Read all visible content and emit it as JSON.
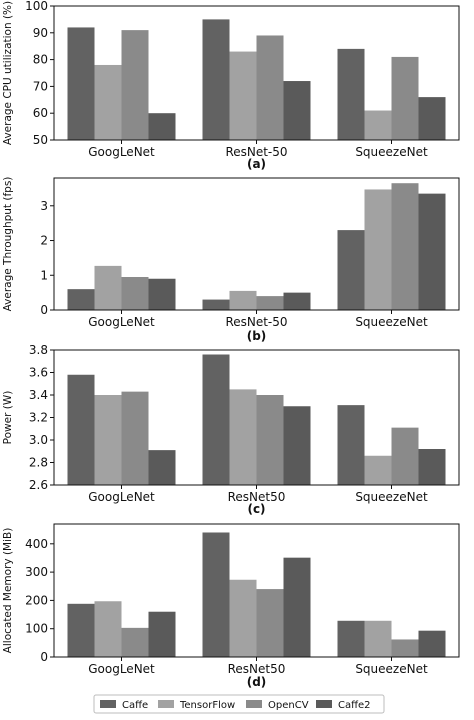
{
  "series_names": [
    "Caffe",
    "TensorFlow",
    "OpenCV",
    "Caffe2"
  ],
  "colors": {
    "Caffe": "#626262",
    "TensorFlow": "#a2a2a2",
    "OpenCV": "#8a8a8a",
    "Caffe2": "#5a5a5a"
  },
  "chart_data": [
    {
      "type": "bar",
      "caption": "(a)",
      "ylabel": "Average CPU utilization (%)",
      "categories": [
        "GoogLeNet",
        "ResNet-50",
        "SqueezeNet"
      ],
      "ylim": [
        50,
        100
      ],
      "yticks": [
        50,
        60,
        70,
        80,
        90,
        100
      ],
      "tick_format": "0",
      "series": [
        {
          "name": "Caffe",
          "values": [
            92,
            95,
            84
          ]
        },
        {
          "name": "TensorFlow",
          "values": [
            78,
            83,
            61
          ]
        },
        {
          "name": "OpenCV",
          "values": [
            91,
            89,
            81
          ]
        },
        {
          "name": "Caffe2",
          "values": [
            60,
            72,
            66
          ]
        }
      ]
    },
    {
      "type": "bar",
      "caption": "(b)",
      "ylabel": "Average Throughput (fps)",
      "categories": [
        "GoogLeNet",
        "ResNet-50",
        "SqueezeNet"
      ],
      "ylim": [
        0,
        3.8
      ],
      "yticks": [
        0,
        1,
        2,
        3
      ],
      "tick_format": "0",
      "series": [
        {
          "name": "Caffe",
          "values": [
            0.6,
            0.3,
            2.3
          ]
        },
        {
          "name": "TensorFlow",
          "values": [
            1.27,
            0.55,
            3.47
          ]
        },
        {
          "name": "OpenCV",
          "values": [
            0.95,
            0.4,
            3.65
          ]
        },
        {
          "name": "Caffe2",
          "values": [
            0.9,
            0.5,
            3.35
          ]
        }
      ]
    },
    {
      "type": "bar",
      "caption": "(c)",
      "ylabel": "Power (W)",
      "categories": [
        "GoogLeNet",
        "ResNet50",
        "SqueezeNet"
      ],
      "ylim": [
        2.6,
        3.8
      ],
      "yticks": [
        2.6,
        2.8,
        3.0,
        3.2,
        3.4,
        3.6,
        3.8
      ],
      "tick_format": "0.0",
      "series": [
        {
          "name": "Caffe",
          "values": [
            3.58,
            3.76,
            3.31
          ]
        },
        {
          "name": "TensorFlow",
          "values": [
            3.4,
            3.45,
            2.86
          ]
        },
        {
          "name": "OpenCV",
          "values": [
            3.43,
            3.4,
            3.11
          ]
        },
        {
          "name": "Caffe2",
          "values": [
            2.91,
            3.3,
            2.92
          ]
        }
      ]
    },
    {
      "type": "bar",
      "caption": "(d)",
      "ylabel": "Allocated Memory (MiB)",
      "categories": [
        "GoogLeNet",
        "ResNet50",
        "SqueezeNet"
      ],
      "ylim": [
        0,
        470
      ],
      "yticks": [
        0,
        100,
        200,
        300,
        400
      ],
      "tick_format": "0",
      "series": [
        {
          "name": "Caffe",
          "values": [
            188,
            440,
            128
          ]
        },
        {
          "name": "TensorFlow",
          "values": [
            197,
            273,
            128
          ]
        },
        {
          "name": "OpenCV",
          "values": [
            103,
            240,
            62
          ]
        },
        {
          "name": "Caffe2",
          "values": [
            160,
            351,
            93
          ]
        }
      ]
    }
  ]
}
